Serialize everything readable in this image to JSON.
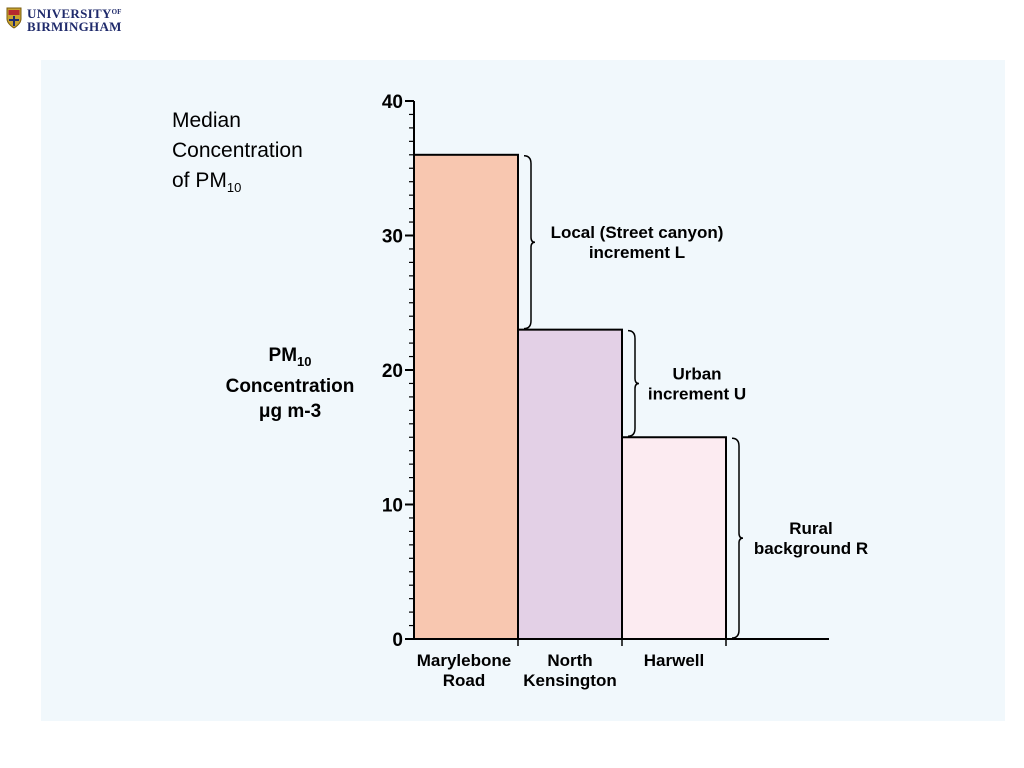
{
  "logo": {
    "line1": "UNIVERSITY",
    "of": "OF",
    "line2": "BIRMINGHAM"
  },
  "note": {
    "line1": "Median",
    "line2": "Concentration",
    "line3": "of PM",
    "sub": "10"
  },
  "chart_data": {
    "type": "bar",
    "title": "",
    "ylabel": {
      "main": "PM",
      "sub": "10",
      "line2": "Concentration",
      "line3": "μg m-3"
    },
    "ylim": [
      0,
      40
    ],
    "ytick_labels": [
      "0",
      "10",
      "20",
      "30",
      "40"
    ],
    "categories": [
      [
        "Marylebone",
        "Road"
      ],
      [
        "North",
        "Kensington"
      ],
      [
        "Harwell"
      ]
    ],
    "values": [
      36,
      23,
      15
    ],
    "colors": [
      "#f8c7b0",
      "#e3d0e6",
      "#fcebf1"
    ],
    "annotations": [
      {
        "lines": [
          "Local (Street canyon)",
          "increment L"
        ],
        "from": 23,
        "to": 36
      },
      {
        "lines": [
          "Urban",
          "increment U"
        ],
        "from": 15,
        "to": 23
      },
      {
        "lines": [
          "Rural",
          "background R"
        ],
        "from": 0,
        "to": 15
      }
    ],
    "grid": false,
    "legend": "none"
  }
}
